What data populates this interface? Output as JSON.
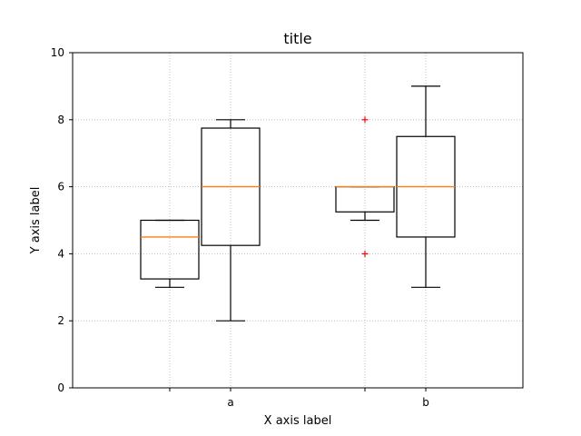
{
  "chart_data": {
    "type": "box",
    "title": "title",
    "xlabel": "X axis label",
    "ylabel": "Y axis label",
    "ylim": [
      0,
      10
    ],
    "yticks": [
      0,
      2,
      4,
      6,
      8,
      10
    ],
    "ytick_labels": [
      "0",
      "2",
      "4",
      "6",
      "8",
      "10"
    ],
    "categories": [
      "a",
      "b"
    ],
    "grid": true,
    "colors": {
      "box": "#000000",
      "median": "#ff7f0e",
      "flier": "#ff0000",
      "grid": "#b0b0b0"
    },
    "boxes": [
      {
        "group": "a",
        "whisker_low": 3,
        "q1": 3.25,
        "median": 4.5,
        "q3": 5,
        "whisker_high": 5,
        "fliers": []
      },
      {
        "group": "a",
        "whisker_low": 2,
        "q1": 4.25,
        "median": 6,
        "q3": 7.75,
        "whisker_high": 8,
        "fliers": []
      },
      {
        "group": "b",
        "whisker_low": 5,
        "q1": 5.25,
        "median": 6,
        "q3": 6,
        "whisker_high": 6,
        "fliers": [
          8,
          4
        ]
      },
      {
        "group": "b",
        "whisker_low": 3,
        "q1": 4.5,
        "median": 6,
        "q3": 7.5,
        "whisker_high": 9,
        "fliers": []
      }
    ]
  }
}
